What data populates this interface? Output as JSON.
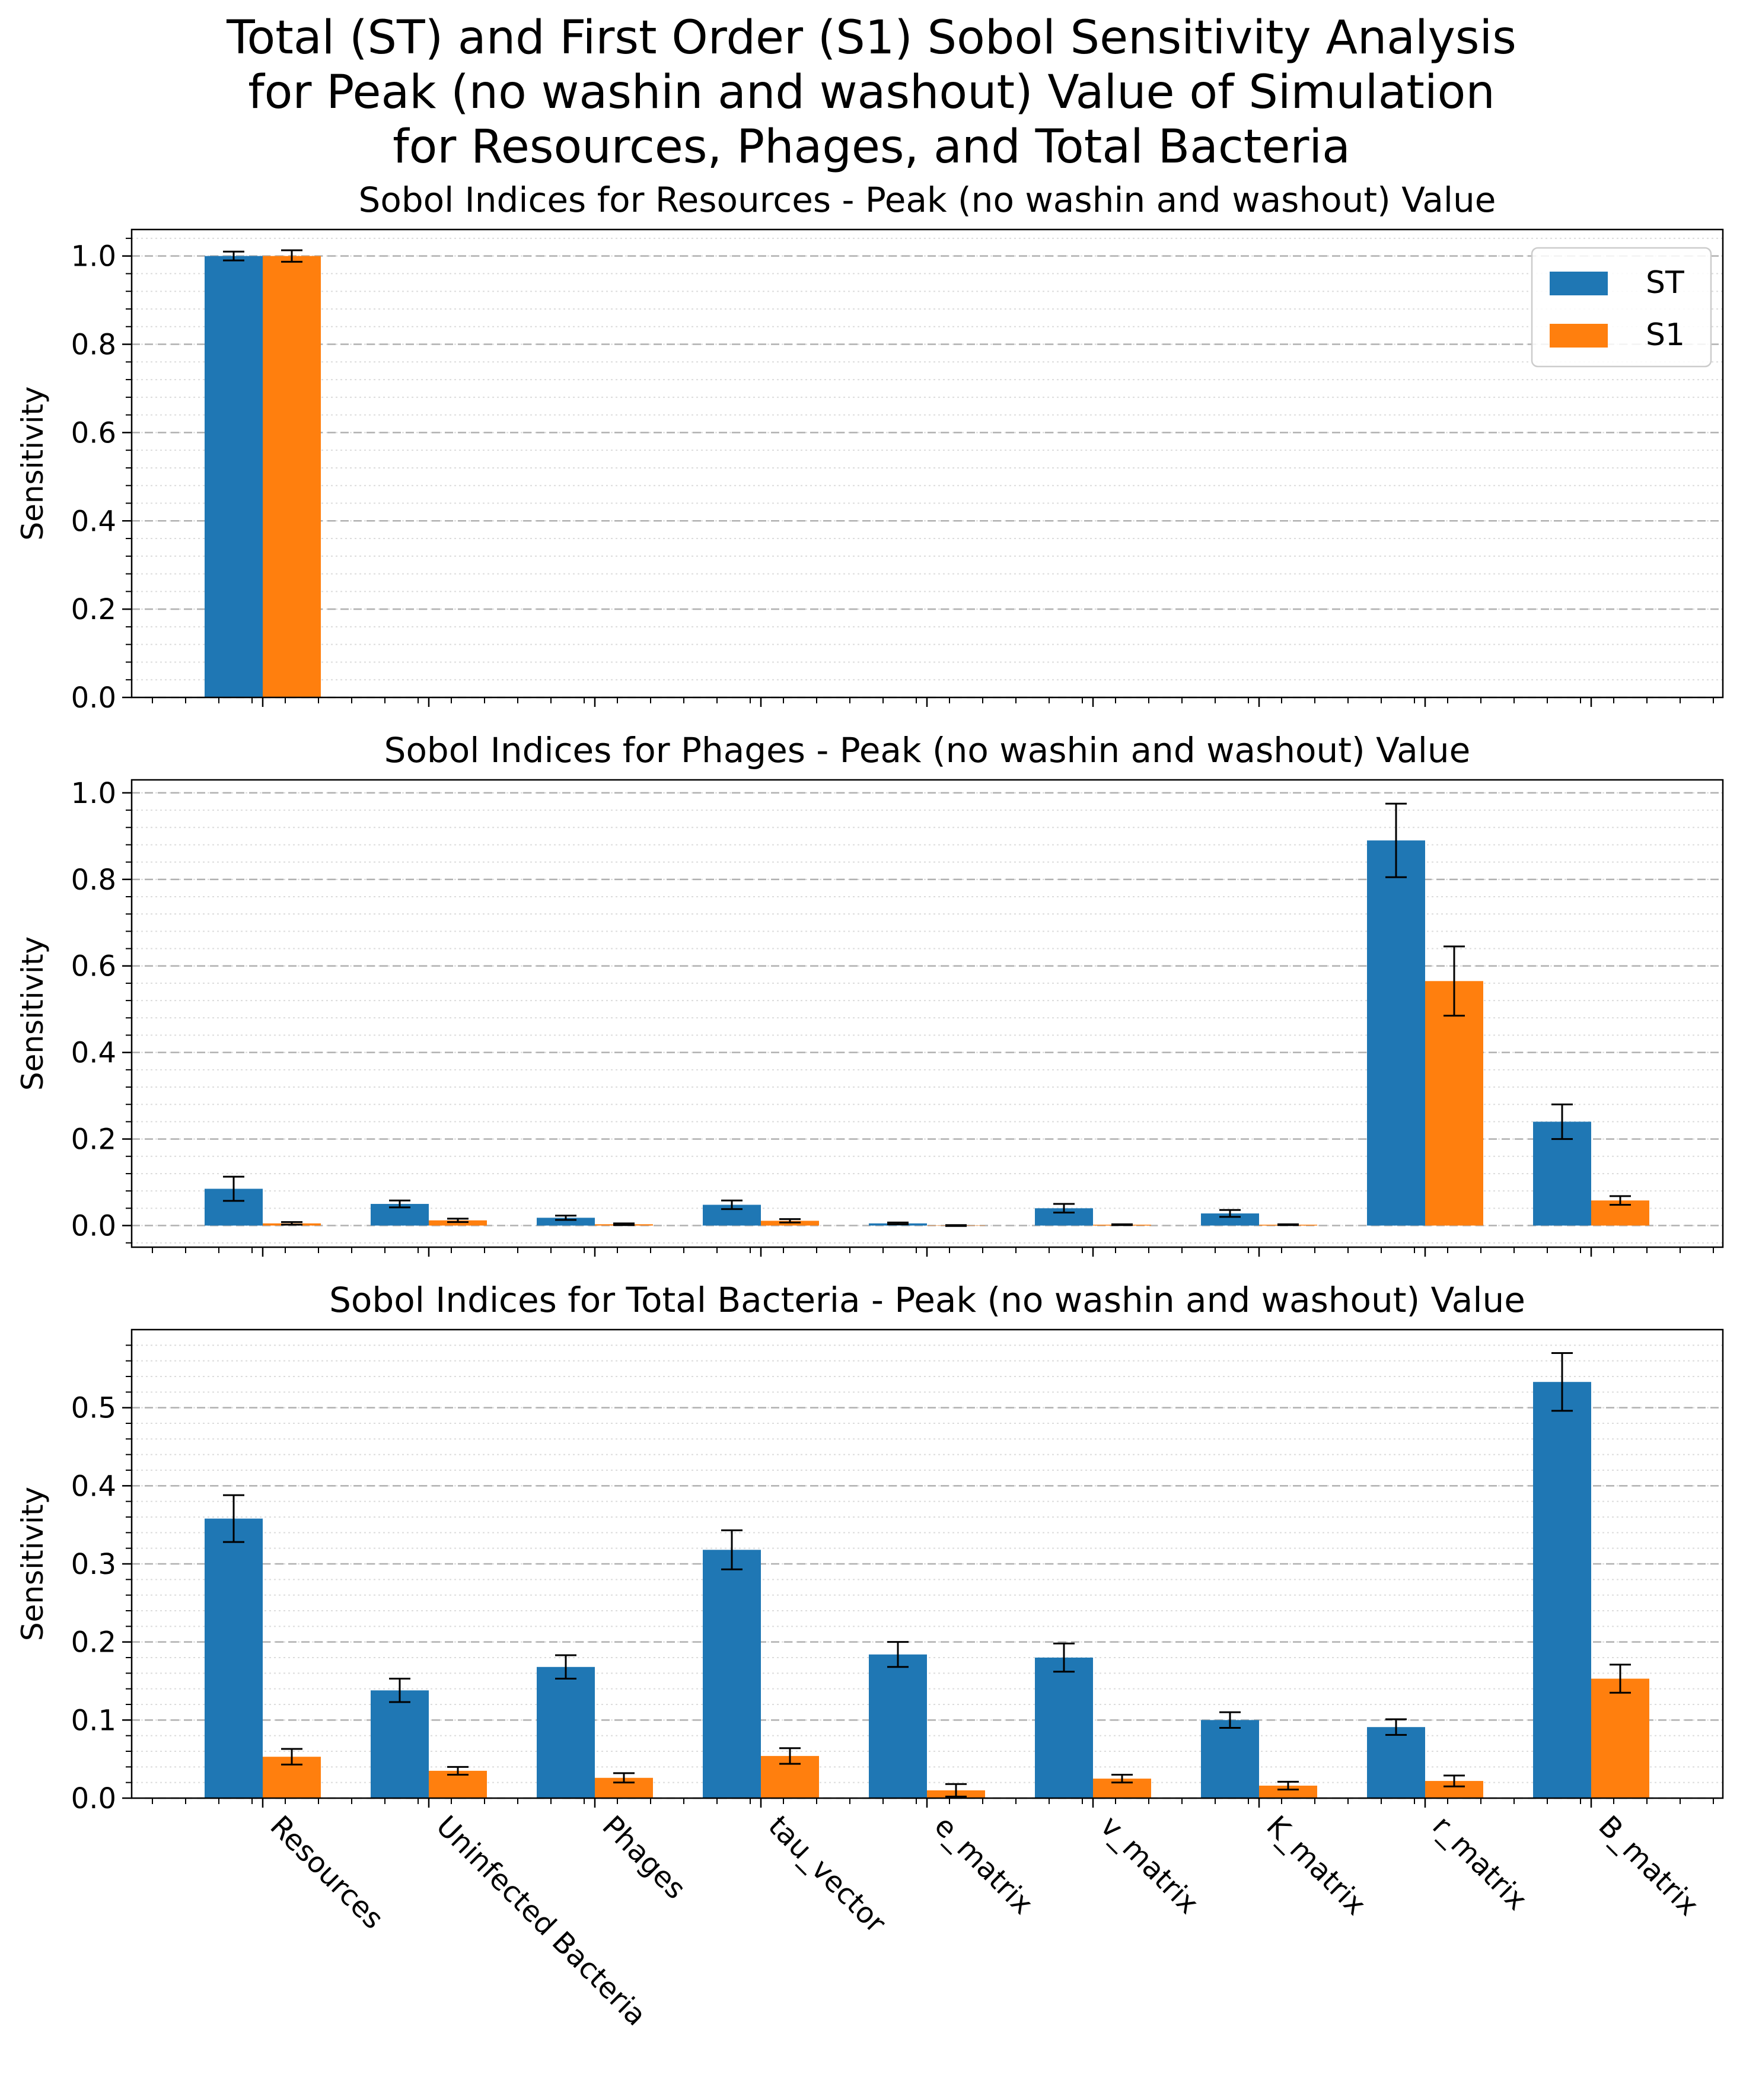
{
  "figure": {
    "title_lines": [
      "Total (ST) and First Order (S1) Sobol Sensitivity Analysis",
      "for Peak (no washin and washout) Value of Simulation",
      "for Resources, Phages, and Total Bacteria"
    ]
  },
  "colors": {
    "ST": "#1f77b4",
    "S1": "#ff7f0e",
    "error_bar": "#000000",
    "grid": "#b0b0b0"
  },
  "chart_data": [
    {
      "type": "bar",
      "title": "Sobol Indices for Resources - Peak (no washin and washout) Value",
      "ylabel": "Sensitivity",
      "xlabel": "",
      "ylim": [
        0,
        1.06
      ],
      "yticks": [
        "0.0",
        "0.2",
        "0.4",
        "0.6",
        "0.8",
        "1.0"
      ],
      "grid": "dashed major, dotted minor (y)",
      "legend": {
        "placement": "upper right",
        "entries": [
          "ST",
          "S1"
        ]
      },
      "categories": [
        "Resources",
        "Uninfected Bacteria",
        "Phages",
        "tau_vector",
        "e_matrix",
        "v_matrix",
        "K_matrix",
        "r_matrix",
        "B_matrix"
      ],
      "series": [
        {
          "name": "ST",
          "values": [
            1.0,
            0.0,
            0.0,
            0.0,
            0.0,
            0.0,
            0.0,
            0.0,
            0.0
          ],
          "errors": [
            0.01,
            0,
            0,
            0,
            0,
            0,
            0,
            0,
            0
          ]
        },
        {
          "name": "S1",
          "values": [
            1.0,
            0.0,
            0.0,
            0.0,
            0.0,
            0.0,
            0.0,
            0.0,
            0.0
          ],
          "errors": [
            0.013,
            0,
            0,
            0,
            0,
            0,
            0,
            0,
            0
          ]
        }
      ]
    },
    {
      "type": "bar",
      "title": "Sobol Indices for Phages - Peak (no washin and washout) Value",
      "ylabel": "Sensitivity",
      "xlabel": "",
      "ylim": [
        -0.05,
        1.03
      ],
      "yticks": [
        "0.0",
        "0.2",
        "0.4",
        "0.6",
        "0.8",
        "1.0"
      ],
      "grid": "dashed major, dotted minor (y)",
      "categories": [
        "Resources",
        "Uninfected Bacteria",
        "Phages",
        "tau_vector",
        "e_matrix",
        "v_matrix",
        "K_matrix",
        "r_matrix",
        "B_matrix"
      ],
      "series": [
        {
          "name": "ST",
          "values": [
            0.085,
            0.05,
            0.018,
            0.048,
            0.005,
            0.04,
            0.028,
            0.89,
            0.24
          ],
          "errors": [
            0.028,
            0.008,
            0.005,
            0.01,
            0.002,
            0.01,
            0.008,
            0.085,
            0.04
          ]
        },
        {
          "name": "S1",
          "values": [
            0.005,
            0.012,
            0.003,
            0.011,
            0.0,
            0.002,
            0.002,
            0.565,
            0.058
          ],
          "errors": [
            0.003,
            0.004,
            0.002,
            0.004,
            0.001,
            0.001,
            0.001,
            0.08,
            0.01
          ]
        }
      ]
    },
    {
      "type": "bar",
      "title": "Sobol Indices for Total Bacteria - Peak (no washin and washout) Value",
      "ylabel": "Sensitivity",
      "xlabel": "",
      "ylim": [
        0,
        0.6
      ],
      "yticks": [
        "0.0",
        "0.1",
        "0.2",
        "0.3",
        "0.4",
        "0.5"
      ],
      "grid": "dashed major, dotted minor (y)",
      "categories": [
        "Resources",
        "Uninfected Bacteria",
        "Phages",
        "tau_vector",
        "e_matrix",
        "v_matrix",
        "K_matrix",
        "r_matrix",
        "B_matrix"
      ],
      "series": [
        {
          "name": "ST",
          "values": [
            0.358,
            0.138,
            0.168,
            0.318,
            0.184,
            0.18,
            0.1,
            0.091,
            0.533
          ],
          "errors": [
            0.03,
            0.015,
            0.015,
            0.025,
            0.016,
            0.018,
            0.01,
            0.01,
            0.037
          ]
        },
        {
          "name": "S1",
          "values": [
            0.053,
            0.035,
            0.026,
            0.054,
            0.01,
            0.025,
            0.016,
            0.022,
            0.153
          ],
          "errors": [
            0.01,
            0.005,
            0.006,
            0.01,
            0.008,
            0.005,
            0.005,
            0.007,
            0.018
          ]
        }
      ]
    }
  ]
}
